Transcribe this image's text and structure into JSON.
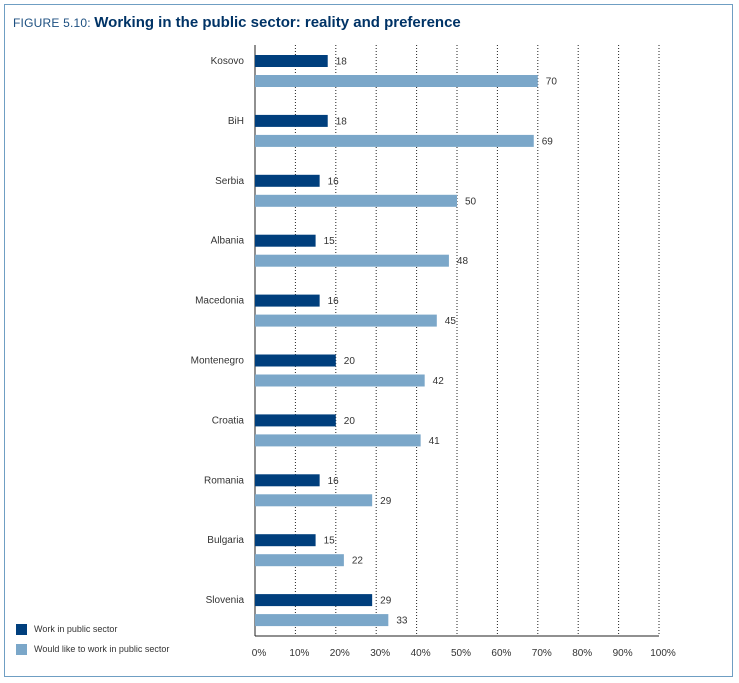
{
  "figure": {
    "prefix": "FIGURE 5.10: ",
    "title": "Working in the public sector: reality and preference"
  },
  "chart_data": {
    "type": "bar",
    "orientation": "horizontal",
    "categories": [
      "Kosovo",
      "BiH",
      "Serbia",
      "Albania",
      "Macedonia",
      "Montenegro",
      "Croatia",
      "Romania",
      "Bulgaria",
      "Slovenia"
    ],
    "series": [
      {
        "name": "Work in public sector",
        "color": "#003f7d",
        "values": [
          18,
          18,
          16,
          15,
          16,
          20,
          20,
          16,
          15,
          29
        ]
      },
      {
        "name": "Would like to work in public sector",
        "color": "#7ba7c9",
        "values": [
          70,
          69,
          50,
          48,
          45,
          42,
          41,
          29,
          22,
          33
        ]
      }
    ],
    "xlim": [
      0,
      100
    ],
    "xticks": [
      "0%",
      "10%",
      "20%",
      "30%",
      "40%",
      "50%",
      "60%",
      "70%",
      "80%",
      "90%",
      "100%"
    ],
    "grid": "vertical dotted",
    "legend": "bottom-left"
  }
}
